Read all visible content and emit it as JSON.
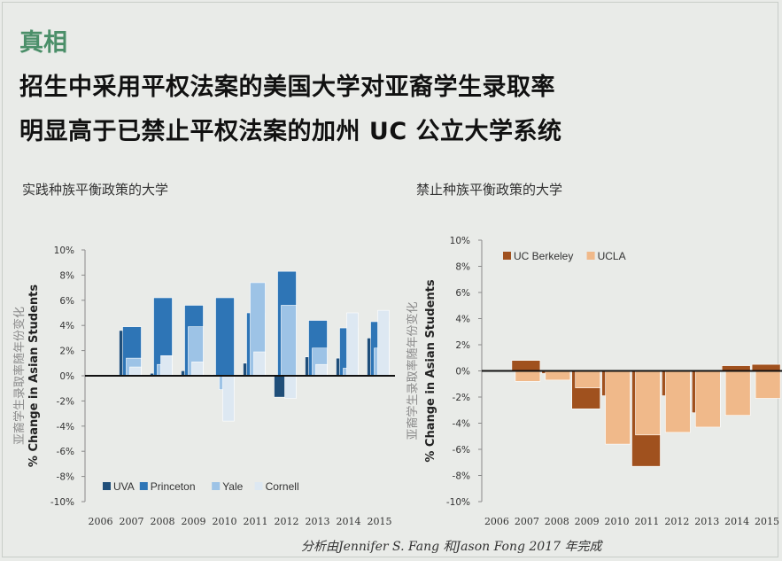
{
  "header": {
    "label": "真相",
    "line1": "招生中采用平权法案的美国大学对亚裔学生录取率",
    "line2": "明显高于已禁止平权法案的加州 UC 公立大学系统"
  },
  "footer": "分析由Jennifer S. Fang 和Jason Fong 2017 年完成",
  "colors": {
    "uva": "#1f4e79",
    "princeton": "#2e75b6",
    "yale": "#9dc3e6",
    "cornell": "#dde8f2",
    "berkeley": "#a0511e",
    "ucla": "#f0b98a"
  },
  "chart_data": [
    {
      "type": "bar",
      "title": "实践种族平衡政策的大学",
      "ylabel": "亚裔学生录取率随年份变化",
      "ylabel2": "% Change in Asian Students",
      "ylim": [
        -10,
        10
      ],
      "ytick_labels": [
        "10%",
        "8%",
        "6%",
        "4%",
        "2%",
        "0%",
        "-2%",
        "-4%",
        "-6%",
        "-8%",
        "-10%"
      ],
      "categories": [
        "2006",
        "2007",
        "2008",
        "2009",
        "2010",
        "2011",
        "2012",
        "2013",
        "2014",
        "2015"
      ],
      "legend_position": "bottom-left",
      "grid": false,
      "series": [
        {
          "name": "UVA",
          "values": [
            null,
            3.6,
            0.2,
            0.4,
            0.1,
            1.0,
            -1.7,
            1.5,
            1.4,
            3.0
          ]
        },
        {
          "name": "Princeton",
          "values": [
            null,
            3.9,
            6.2,
            5.6,
            6.2,
            5.0,
            8.3,
            4.4,
            3.8,
            4.3
          ]
        },
        {
          "name": "Yale",
          "values": [
            null,
            1.4,
            0.9,
            3.9,
            -1.1,
            7.4,
            5.6,
            2.2,
            0.6,
            2.2
          ]
        },
        {
          "name": "Cornell",
          "values": [
            null,
            0.7,
            1.6,
            1.1,
            -3.6,
            1.9,
            -1.8,
            0.9,
            5.0,
            5.2
          ]
        }
      ]
    },
    {
      "type": "bar",
      "title": "禁止种族平衡政策的大学",
      "ylabel": "亚裔学生录取率随年份变化",
      "ylabel2": "% Change in Asian Students",
      "ylim": [
        -10,
        10
      ],
      "ytick_labels": [
        "10%",
        "8%",
        "6%",
        "4%",
        "2%",
        "0%",
        "-2%",
        "-4%",
        "-6%",
        "-8%",
        "-10%"
      ],
      "categories": [
        "2006",
        "2007",
        "2008",
        "2009",
        "2010",
        "2011",
        "2012",
        "2013",
        "2014",
        "2015"
      ],
      "legend_position": "top-left",
      "grid": false,
      "series": [
        {
          "name": "UC Berkeley",
          "values": [
            null,
            0.8,
            -0.2,
            -2.9,
            -1.9,
            -7.3,
            -1.9,
            -3.2,
            0.4,
            0.5
          ]
        },
        {
          "name": "UCLA",
          "values": [
            null,
            -0.8,
            -0.7,
            -1.3,
            -5.6,
            -4.9,
            -4.7,
            -4.3,
            -3.4,
            -2.1
          ]
        }
      ]
    }
  ]
}
